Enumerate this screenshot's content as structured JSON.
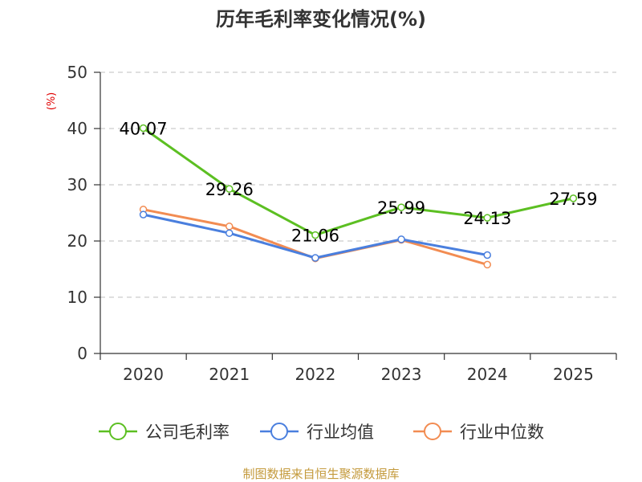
{
  "chart_data": {
    "type": "line",
    "title": "历年毛利率变化情况(%)",
    "xlabel": "",
    "ylabel": "(%)",
    "categories": [
      "2020",
      "2021",
      "2022",
      "2023",
      "2024",
      "2025"
    ],
    "ylim": [
      0,
      50
    ],
    "yticks": [
      0,
      10,
      20,
      30,
      40,
      50
    ],
    "grid": true,
    "legend_position": "bottom",
    "series": [
      {
        "name": "公司毛利率",
        "color": "#5cbf22",
        "values": [
          40.07,
          29.26,
          21.06,
          25.99,
          24.13,
          27.59
        ],
        "labels": [
          "40.07",
          "29.26",
          "21.06",
          "25.99",
          "24.13",
          "27.59"
        ]
      },
      {
        "name": "行业均值",
        "color": "#4a7fde",
        "values": [
          24.7,
          21.4,
          17.0,
          20.3,
          17.5,
          null
        ]
      },
      {
        "name": "行业中位数",
        "color": "#f28c52",
        "values": [
          25.6,
          22.6,
          16.9,
          20.2,
          15.8,
          null
        ]
      }
    ],
    "source": "制图数据来自恒生聚源数据库"
  }
}
